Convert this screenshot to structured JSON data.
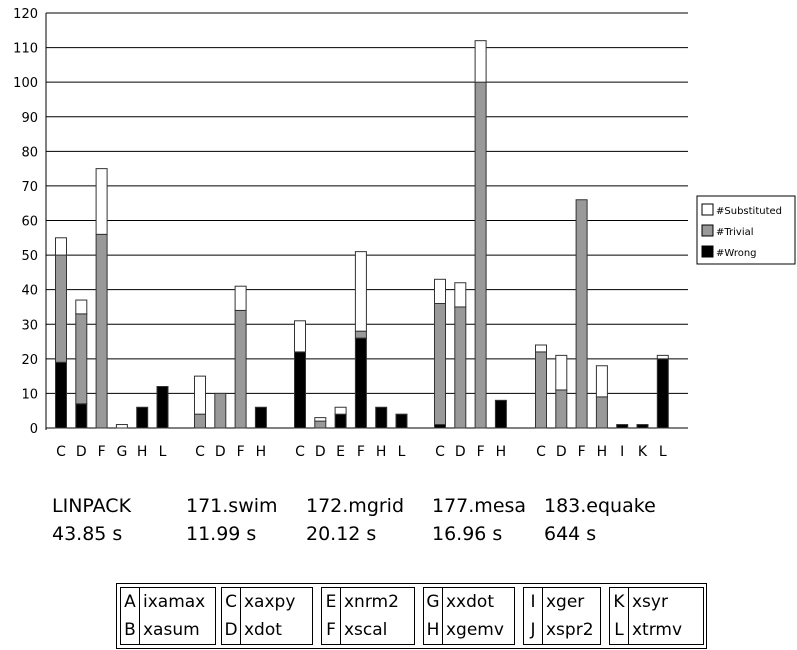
{
  "chart_data": {
    "type": "bar",
    "stacked": true,
    "y_ticks": [
      0,
      10,
      20,
      30,
      40,
      50,
      60,
      70,
      80,
      90,
      100,
      110,
      120
    ],
    "ylim": [
      0,
      120
    ],
    "grid": true,
    "legend_position": "right",
    "series": [
      {
        "name": "#Substituted",
        "color": "#ffffff"
      },
      {
        "name": "#Trivial",
        "color": "#999999"
      },
      {
        "name": "#Wrong",
        "color": "#000000"
      }
    ],
    "groups": [
      {
        "bars": [
          {
            "label": "C",
            "wrong": 19,
            "trivial": 31,
            "substituted": 5
          },
          {
            "label": "D",
            "wrong": 7,
            "trivial": 26,
            "substituted": 4
          },
          {
            "label": "F",
            "wrong": 0,
            "trivial": 56,
            "substituted": 19
          },
          {
            "label": "G",
            "wrong": 0,
            "trivial": 0,
            "substituted": 1
          },
          {
            "label": "H",
            "wrong": 6,
            "trivial": 0,
            "substituted": 0
          },
          {
            "label": "L",
            "wrong": 12,
            "trivial": 0,
            "substituted": 0
          }
        ]
      },
      {
        "bars": [
          {
            "label": "C",
            "wrong": 0,
            "trivial": 4,
            "substituted": 11
          },
          {
            "label": "D",
            "wrong": 0,
            "trivial": 10,
            "substituted": 0
          },
          {
            "label": "F",
            "wrong": 0,
            "trivial": 34,
            "substituted": 7
          },
          {
            "label": "H",
            "wrong": 6,
            "trivial": 0,
            "substituted": 0
          }
        ]
      },
      {
        "bars": [
          {
            "label": "C",
            "wrong": 22,
            "trivial": 0,
            "substituted": 9
          },
          {
            "label": "D",
            "wrong": 0,
            "trivial": 2,
            "substituted": 1
          },
          {
            "label": "E",
            "wrong": 4,
            "trivial": 0,
            "substituted": 2
          },
          {
            "label": "F",
            "wrong": 26,
            "trivial": 2,
            "substituted": 23
          },
          {
            "label": "H",
            "wrong": 6,
            "trivial": 0,
            "substituted": 0
          },
          {
            "label": "L",
            "wrong": 4,
            "trivial": 0,
            "substituted": 0
          }
        ]
      },
      {
        "bars": [
          {
            "label": "C",
            "wrong": 1,
            "trivial": 35,
            "substituted": 7
          },
          {
            "label": "D",
            "wrong": 0,
            "trivial": 35,
            "substituted": 7
          },
          {
            "label": "F",
            "wrong": 0,
            "trivial": 100,
            "substituted": 12
          },
          {
            "label": "H",
            "wrong": 8,
            "trivial": 0,
            "substituted": 0
          }
        ]
      },
      {
        "bars": [
          {
            "label": "C",
            "wrong": 0,
            "trivial": 22,
            "substituted": 2
          },
          {
            "label": "D",
            "wrong": 0,
            "trivial": 11,
            "substituted": 10
          },
          {
            "label": "F",
            "wrong": 0,
            "trivial": 66,
            "substituted": 0
          },
          {
            "label": "H",
            "wrong": 0,
            "trivial": 9,
            "substituted": 9
          },
          {
            "label": "I",
            "wrong": 1,
            "trivial": 0,
            "substituted": 0
          },
          {
            "label": "K",
            "wrong": 1,
            "trivial": 0,
            "substituted": 0
          },
          {
            "label": "L",
            "wrong": 20,
            "trivial": 0,
            "substituted": 1
          }
        ]
      }
    ]
  },
  "benchmarks": [
    {
      "name": "LINPACK",
      "time": "43.85 s"
    },
    {
      "name": "171.swim",
      "time": "11.99 s"
    },
    {
      "name": "172.mgrid",
      "time": "20.12 s"
    },
    {
      "name": "177.mesa",
      "time": "16.96 s"
    },
    {
      "name": "183.equake",
      "time": "644 s"
    }
  ],
  "key": [
    [
      {
        "letter": "A",
        "func": "ixamax"
      },
      {
        "letter": "B",
        "func": "xasum"
      }
    ],
    [
      {
        "letter": "C",
        "func": "xaxpy"
      },
      {
        "letter": "D",
        "func": "xdot"
      }
    ],
    [
      {
        "letter": "E",
        "func": "xnrm2"
      },
      {
        "letter": "F",
        "func": "xscal"
      }
    ],
    [
      {
        "letter": "G",
        "func": "xxdot"
      },
      {
        "letter": "H",
        "func": "xgemv"
      }
    ],
    [
      {
        "letter": "I",
        "func": "xger"
      },
      {
        "letter": "J",
        "func": "xspr2"
      }
    ],
    [
      {
        "letter": "K",
        "func": "xsyr"
      },
      {
        "letter": "L",
        "func": "xtrmv"
      }
    ]
  ]
}
